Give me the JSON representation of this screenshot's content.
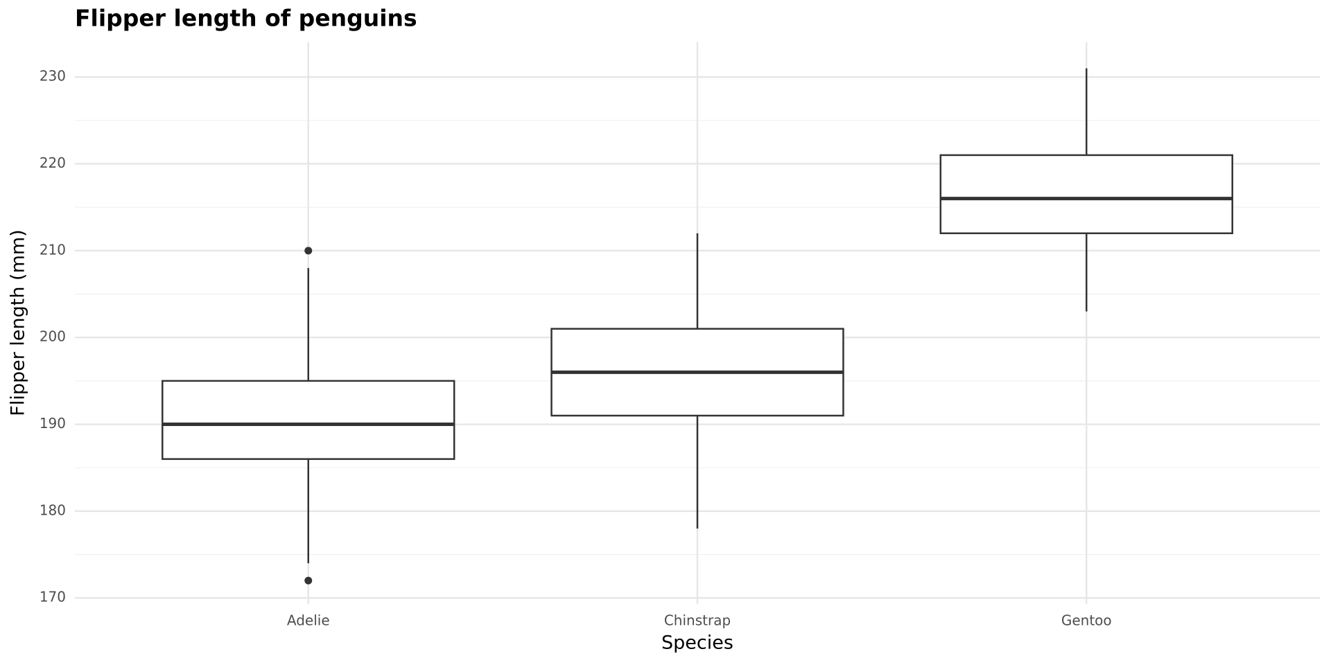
{
  "chart_data": {
    "type": "box",
    "title": "Flipper length of penguins",
    "x_label": "Species",
    "y_label": "Flipper length (mm)",
    "categories": [
      "Adelie",
      "Chinstrap",
      "Gentoo"
    ],
    "boxes": [
      {
        "whisker_low": 174,
        "q1": 186,
        "median": 190,
        "q3": 195,
        "whisker_high": 208,
        "outliers": [
          210,
          172
        ]
      },
      {
        "whisker_low": 178,
        "q1": 191,
        "median": 196,
        "q3": 201,
        "whisker_high": 212,
        "outliers": []
      },
      {
        "whisker_low": 203,
        "q1": 212,
        "median": 216,
        "q3": 221,
        "whisker_high": 231,
        "outliers": []
      }
    ],
    "color": "#333333",
    "ylim": [
      169.3,
      234
    ],
    "yticks": [
      170,
      180,
      190,
      200,
      210,
      220,
      230
    ],
    "grid": true
  }
}
